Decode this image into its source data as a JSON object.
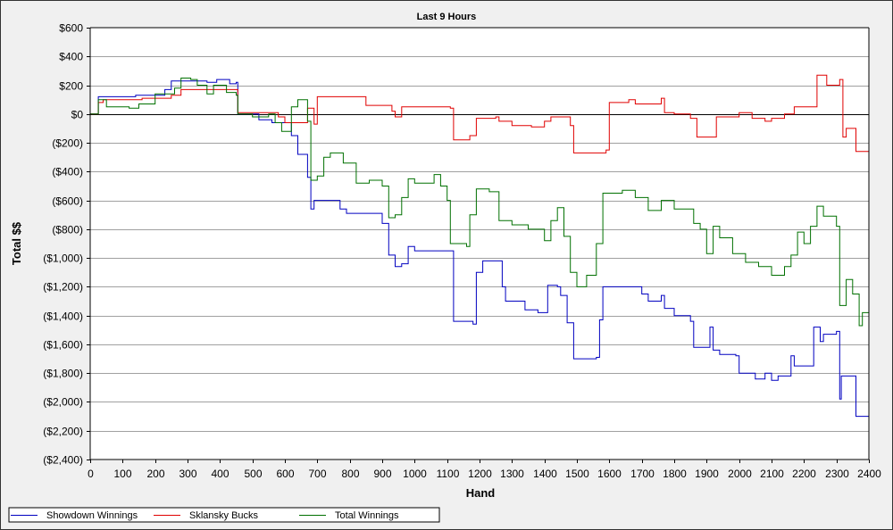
{
  "chart_data": {
    "type": "line",
    "title": "Last 9 Hours",
    "xlabel": "Hand",
    "ylabel": "Total $$",
    "xlim": [
      0,
      2400
    ],
    "ylim": [
      -2400,
      600
    ],
    "xticks": [
      0,
      100,
      200,
      300,
      400,
      500,
      600,
      700,
      800,
      900,
      1000,
      1100,
      1200,
      1300,
      1400,
      1500,
      1600,
      1700,
      1800,
      1900,
      2000,
      2100,
      2200,
      2300,
      2400
    ],
    "xtick_labels": [
      "0",
      "100",
      "200",
      "300",
      "400",
      "500",
      "600",
      "700",
      "800",
      "900",
      "1000",
      "1100",
      "1200",
      "1300",
      "1400",
      "1500",
      "1600",
      "1700",
      "1800",
      "1900",
      "2000",
      "2100",
      "2200",
      "2300",
      "2400"
    ],
    "yticks": [
      600,
      400,
      200,
      0,
      -200,
      -400,
      -600,
      -800,
      -1000,
      -1200,
      -1400,
      -1600,
      -1800,
      -2000,
      -2200,
      -2400
    ],
    "ytick_labels": [
      "$600",
      "$400",
      "$200",
      "$0",
      "($200)",
      "($400)",
      "($600)",
      "($800)",
      "($1,000)",
      "($1,200)",
      "($1,400)",
      "($1,600)",
      "($1,800)",
      "($2,000)",
      "($2,200)",
      "($2,400)"
    ],
    "grid": "horizontal",
    "legend_position": "bottom-left",
    "series": [
      {
        "name": "Showdown Winnings",
        "color": "#0000c0",
        "points": [
          [
            0,
            0
          ],
          [
            20,
            0
          ],
          [
            25,
            120
          ],
          [
            140,
            130
          ],
          [
            230,
            170
          ],
          [
            250,
            230
          ],
          [
            360,
            220
          ],
          [
            390,
            240
          ],
          [
            430,
            210
          ],
          [
            450,
            220
          ],
          [
            455,
            0
          ],
          [
            520,
            -40
          ],
          [
            560,
            -60
          ],
          [
            620,
            -150
          ],
          [
            640,
            -280
          ],
          [
            670,
            -440
          ],
          [
            680,
            -660
          ],
          [
            690,
            -600
          ],
          [
            770,
            -660
          ],
          [
            790,
            -690
          ],
          [
            880,
            -690
          ],
          [
            900,
            -760
          ],
          [
            920,
            -980
          ],
          [
            940,
            -1060
          ],
          [
            960,
            -1040
          ],
          [
            980,
            -920
          ],
          [
            1000,
            -950
          ],
          [
            1100,
            -950
          ],
          [
            1120,
            -1440
          ],
          [
            1180,
            -1460
          ],
          [
            1190,
            -1100
          ],
          [
            1210,
            -1020
          ],
          [
            1240,
            -1020
          ],
          [
            1270,
            -1200
          ],
          [
            1280,
            -1300
          ],
          [
            1340,
            -1360
          ],
          [
            1380,
            -1380
          ],
          [
            1410,
            -1190
          ],
          [
            1440,
            -1200
          ],
          [
            1450,
            -1260
          ],
          [
            1470,
            -1450
          ],
          [
            1490,
            -1700
          ],
          [
            1560,
            -1690
          ],
          [
            1570,
            -1430
          ],
          [
            1580,
            -1200
          ],
          [
            1650,
            -1200
          ],
          [
            1700,
            -1250
          ],
          [
            1720,
            -1300
          ],
          [
            1760,
            -1260
          ],
          [
            1770,
            -1350
          ],
          [
            1800,
            -1400
          ],
          [
            1850,
            -1440
          ],
          [
            1860,
            -1620
          ],
          [
            1900,
            -1620
          ],
          [
            1910,
            -1480
          ],
          [
            1920,
            -1640
          ],
          [
            1940,
            -1670
          ],
          [
            1990,
            -1680
          ],
          [
            2000,
            -1800
          ],
          [
            2050,
            -1840
          ],
          [
            2080,
            -1800
          ],
          [
            2100,
            -1850
          ],
          [
            2120,
            -1820
          ],
          [
            2140,
            -1820
          ],
          [
            2160,
            -1680
          ],
          [
            2170,
            -1750
          ],
          [
            2220,
            -1750
          ],
          [
            2230,
            -1480
          ],
          [
            2250,
            -1580
          ],
          [
            2260,
            -1530
          ],
          [
            2300,
            -1510
          ],
          [
            2310,
            -1980
          ],
          [
            2315,
            -1820
          ],
          [
            2350,
            -1820
          ],
          [
            2360,
            -2100
          ],
          [
            2400,
            -2100
          ]
        ]
      },
      {
        "name": "Sklansky Bucks",
        "color": "#e00000",
        "points": [
          [
            0,
            0
          ],
          [
            25,
            80
          ],
          [
            40,
            100
          ],
          [
            140,
            100
          ],
          [
            160,
            110
          ],
          [
            250,
            130
          ],
          [
            280,
            170
          ],
          [
            450,
            170
          ],
          [
            455,
            10
          ],
          [
            580,
            -20
          ],
          [
            600,
            -60
          ],
          [
            660,
            -60
          ],
          [
            670,
            40
          ],
          [
            690,
            -70
          ],
          [
            700,
            120
          ],
          [
            850,
            60
          ],
          [
            920,
            60
          ],
          [
            930,
            20
          ],
          [
            940,
            -20
          ],
          [
            960,
            50
          ],
          [
            1110,
            40
          ],
          [
            1120,
            -180
          ],
          [
            1170,
            -150
          ],
          [
            1190,
            -30
          ],
          [
            1250,
            -20
          ],
          [
            1260,
            -50
          ],
          [
            1300,
            -80
          ],
          [
            1360,
            -90
          ],
          [
            1400,
            -50
          ],
          [
            1420,
            -20
          ],
          [
            1480,
            -80
          ],
          [
            1490,
            -270
          ],
          [
            1590,
            -250
          ],
          [
            1600,
            80
          ],
          [
            1660,
            100
          ],
          [
            1680,
            70
          ],
          [
            1760,
            110
          ],
          [
            1770,
            10
          ],
          [
            1800,
            0
          ],
          [
            1850,
            -30
          ],
          [
            1870,
            -160
          ],
          [
            1910,
            -160
          ],
          [
            1930,
            -20
          ],
          [
            2000,
            10
          ],
          [
            2040,
            -30
          ],
          [
            2080,
            -50
          ],
          [
            2100,
            -30
          ],
          [
            2140,
            0
          ],
          [
            2170,
            50
          ],
          [
            2230,
            50
          ],
          [
            2240,
            270
          ],
          [
            2270,
            200
          ],
          [
            2310,
            240
          ],
          [
            2320,
            -160
          ],
          [
            2330,
            -100
          ],
          [
            2360,
            -260
          ],
          [
            2400,
            -260
          ]
        ]
      },
      {
        "name": "Total Winnings",
        "color": "#007000",
        "points": [
          [
            0,
            0
          ],
          [
            25,
            100
          ],
          [
            50,
            50
          ],
          [
            120,
            40
          ],
          [
            150,
            70
          ],
          [
            200,
            140
          ],
          [
            260,
            180
          ],
          [
            280,
            250
          ],
          [
            310,
            240
          ],
          [
            330,
            200
          ],
          [
            360,
            140
          ],
          [
            380,
            200
          ],
          [
            420,
            150
          ],
          [
            450,
            130
          ],
          [
            455,
            0
          ],
          [
            500,
            -20
          ],
          [
            550,
            0
          ],
          [
            570,
            -60
          ],
          [
            590,
            -120
          ],
          [
            620,
            50
          ],
          [
            640,
            100
          ],
          [
            670,
            -50
          ],
          [
            680,
            -460
          ],
          [
            700,
            -430
          ],
          [
            720,
            -300
          ],
          [
            740,
            -270
          ],
          [
            780,
            -340
          ],
          [
            820,
            -480
          ],
          [
            860,
            -460
          ],
          [
            900,
            -500
          ],
          [
            920,
            -720
          ],
          [
            940,
            -700
          ],
          [
            960,
            -580
          ],
          [
            980,
            -450
          ],
          [
            1000,
            -480
          ],
          [
            1060,
            -420
          ],
          [
            1080,
            -500
          ],
          [
            1100,
            -600
          ],
          [
            1110,
            -900
          ],
          [
            1160,
            -920
          ],
          [
            1170,
            -700
          ],
          [
            1190,
            -520
          ],
          [
            1230,
            -540
          ],
          [
            1260,
            -740
          ],
          [
            1300,
            -770
          ],
          [
            1350,
            -800
          ],
          [
            1400,
            -880
          ],
          [
            1420,
            -740
          ],
          [
            1440,
            -650
          ],
          [
            1460,
            -850
          ],
          [
            1480,
            -1100
          ],
          [
            1500,
            -1200
          ],
          [
            1530,
            -1120
          ],
          [
            1560,
            -900
          ],
          [
            1580,
            -550
          ],
          [
            1640,
            -530
          ],
          [
            1680,
            -580
          ],
          [
            1720,
            -670
          ],
          [
            1760,
            -600
          ],
          [
            1800,
            -660
          ],
          [
            1860,
            -760
          ],
          [
            1880,
            -800
          ],
          [
            1900,
            -970
          ],
          [
            1920,
            -780
          ],
          [
            1940,
            -860
          ],
          [
            1980,
            -970
          ],
          [
            2020,
            -1030
          ],
          [
            2060,
            -1060
          ],
          [
            2100,
            -1120
          ],
          [
            2140,
            -1060
          ],
          [
            2160,
            -980
          ],
          [
            2180,
            -820
          ],
          [
            2200,
            -900
          ],
          [
            2220,
            -780
          ],
          [
            2240,
            -640
          ],
          [
            2260,
            -710
          ],
          [
            2300,
            -780
          ],
          [
            2310,
            -1330
          ],
          [
            2330,
            -1150
          ],
          [
            2350,
            -1250
          ],
          [
            2370,
            -1470
          ],
          [
            2380,
            -1380
          ],
          [
            2400,
            -1410
          ]
        ]
      }
    ]
  }
}
